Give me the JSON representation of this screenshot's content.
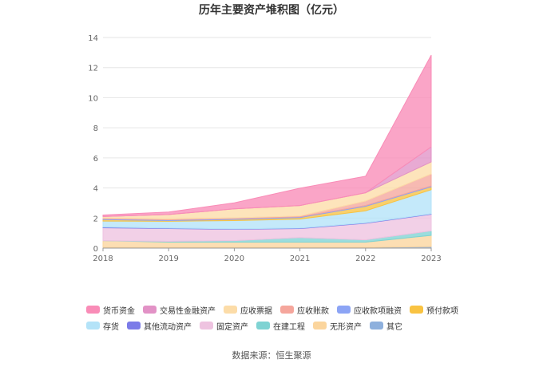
{
  "chart_data": {
    "type": "area",
    "title": "历年主要资产堆积图（亿元）",
    "categories": [
      "2018",
      "2019",
      "2020",
      "2021",
      "2022",
      "2023"
    ],
    "ylim": [
      0,
      14
    ],
    "yticks": [
      "0",
      "2",
      "4",
      "6",
      "8",
      "10",
      "12",
      "14"
    ],
    "grid": true,
    "legend_position": "bottom",
    "stacked": true,
    "series": [
      {
        "name": "其它",
        "color": "#8eb0dd",
        "values": [
          0.05,
          0.05,
          0.05,
          0.05,
          0.05,
          0.1
        ]
      },
      {
        "name": "无形资产",
        "color": "#fbd59d",
        "values": [
          0.45,
          0.35,
          0.35,
          0.35,
          0.35,
          0.75
        ]
      },
      {
        "name": "在建工程",
        "color": "#7fd3d3",
        "values": [
          0.0,
          0.05,
          0.1,
          0.3,
          0.15,
          0.3
        ]
      },
      {
        "name": "固定资产",
        "color": "#eec3e0",
        "values": [
          0.85,
          0.85,
          0.75,
          0.6,
          1.1,
          1.1
        ]
      },
      {
        "name": "其他流动资产",
        "color": "#7b7be8",
        "values": [
          0.05,
          0.03,
          0.03,
          0.03,
          0.03,
          0.03
        ]
      },
      {
        "name": "存货",
        "color": "#b4e3f8",
        "values": [
          0.4,
          0.45,
          0.55,
          0.6,
          0.8,
          1.6
        ]
      },
      {
        "name": "预付款项",
        "color": "#f9c342",
        "values": [
          0.1,
          0.05,
          0.08,
          0.1,
          0.3,
          0.2
        ]
      },
      {
        "name": "应收款项融资",
        "color": "#8ca4f5",
        "values": [
          0.05,
          0.05,
          0.05,
          0.05,
          0.05,
          0.05
        ]
      },
      {
        "name": "应收账款",
        "color": "#f5a69c",
        "values": [
          0.05,
          0.05,
          0.05,
          0.05,
          0.3,
          0.8
        ]
      },
      {
        "name": "应收票据",
        "color": "#fcdca8",
        "values": [
          0.1,
          0.3,
          0.6,
          0.7,
          0.55,
          0.8
        ]
      },
      {
        "name": "交易性金融资产",
        "color": "#e292c6",
        "values": [
          0.0,
          0.0,
          0.0,
          0.0,
          0.0,
          1.0
        ]
      },
      {
        "name": "货币资金",
        "color": "#f98cb7",
        "values": [
          0.1,
          0.17,
          0.4,
          1.15,
          1.1,
          6.1
        ]
      }
    ]
  },
  "legend_order": [
    "货币资金",
    "交易性金融资产",
    "应收票据",
    "应收账款",
    "应收款项融资",
    "预付款项",
    "存货",
    "其他流动资产",
    "固定资产",
    "在建工程",
    "无形资产",
    "其它"
  ],
  "source": "数据来源：恒生聚源"
}
